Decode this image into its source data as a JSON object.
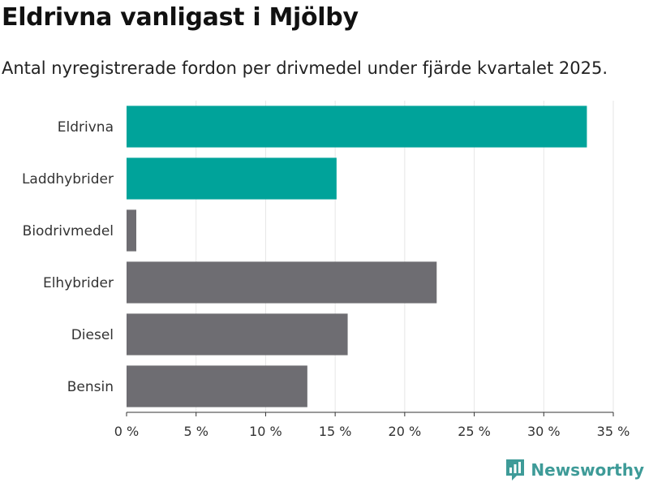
{
  "chart_data": {
    "type": "bar",
    "orientation": "horizontal",
    "title": "Eldrivna vanligast i Mjölby",
    "subtitle": "Antal nyregistrerade fordon per drivmedel under fjärde kvartalet 2025.",
    "categories": [
      "Eldrivna",
      "Laddhybrider",
      "Biodrivmedel",
      "Elhybrider",
      "Diesel",
      "Bensin"
    ],
    "values": [
      33.1,
      15.1,
      0.7,
      22.3,
      15.9,
      13.0
    ],
    "highlight": [
      true,
      true,
      false,
      false,
      false,
      false
    ],
    "xlim": [
      0,
      35
    ],
    "xticks": [
      0,
      5,
      10,
      15,
      20,
      25,
      30,
      35
    ],
    "xtick_labels": [
      "0 %",
      "5 %",
      "10 %",
      "15 %",
      "20 %",
      "25 %",
      "30 %",
      "35 %"
    ],
    "xlabel": "",
    "ylabel": "",
    "grid": true,
    "colors": {
      "highlight": "#00a39a",
      "base": "#6e6d72",
      "grid": "#e6e6e6",
      "axis": "#333333"
    }
  },
  "brand": {
    "name": "Newsworthy",
    "icon": "newsworthy-logo-icon",
    "color": "#3e9b98"
  }
}
